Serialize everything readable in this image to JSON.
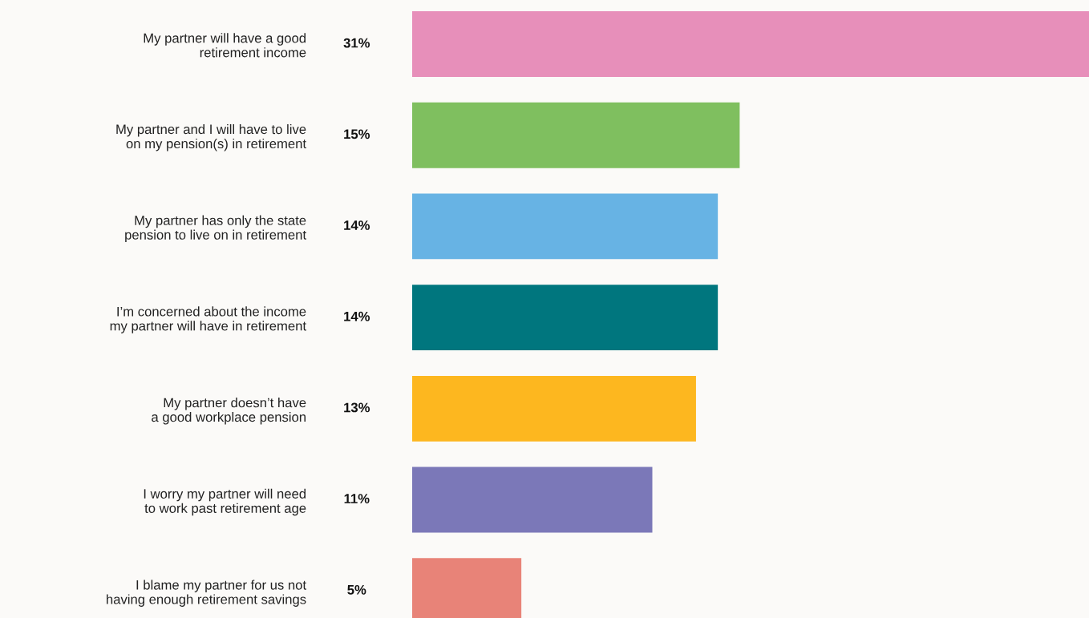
{
  "chart_data": {
    "type": "bar",
    "orientation": "horizontal",
    "data_labels": true,
    "categories": [
      "My partner will have a good\nretirement income",
      "My partner and I will have to live\non my pension(s) in retirement",
      "My partner has only the state\npension to live on in retirement",
      "I’m concerned about the income\nmy partner will have in retirement",
      "My partner doesn’t have\na good workplace pension",
      "I worry my partner will need\nto work past retirement age",
      "I blame my partner for us not\nhaving enough retirement savings"
    ],
    "values": [
      31,
      15,
      14,
      14,
      13,
      11,
      5
    ],
    "value_labels": [
      "31%",
      "15%",
      "14%",
      "14%",
      "13%",
      "11%",
      "5%"
    ],
    "colors": [
      "#e78fba",
      "#7fbf5f",
      "#67b3e4",
      "#00767e",
      "#fdb71f",
      "#7b78b8",
      "#e88378"
    ]
  }
}
